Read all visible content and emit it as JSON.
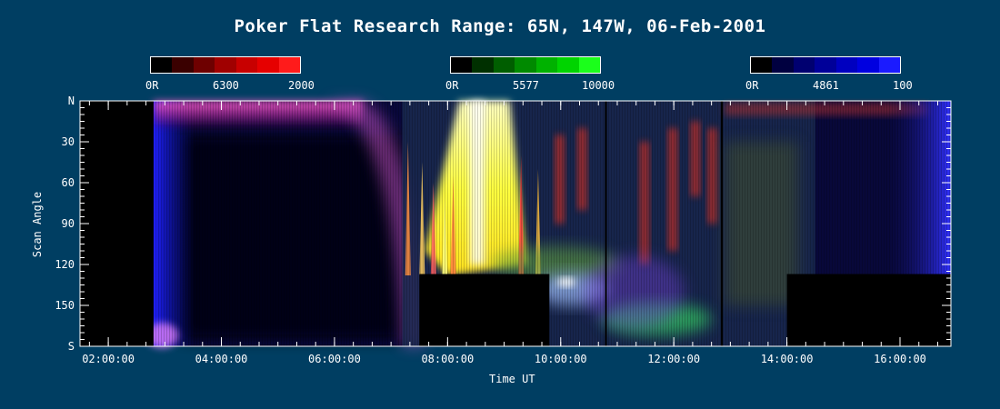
{
  "chart_data": {
    "type": "heatmap",
    "title": "Poker Flat Research Range: 65N, 147W, 06-Feb-2001",
    "xlabel": "Time UT",
    "ylabel": "Scan Angle",
    "x_ticks": [
      "02:00:00",
      "04:00:00",
      "06:00:00",
      "08:00:00",
      "10:00:00",
      "12:00:00",
      "14:00:00",
      "16:00:00"
    ],
    "y_ticks": [
      "N",
      "30",
      "60",
      "90",
      "120",
      "150",
      "S"
    ],
    "xlim_hours": [
      1.5,
      16.9
    ],
    "ylim_deg": [
      0,
      180
    ],
    "colorbars": [
      {
        "wavelength": "6300",
        "min_label": "0R",
        "max_label": "2000",
        "color": "#ff1b1b",
        "segments": [
          "#000000",
          "#3a0000",
          "#6e0000",
          "#a00000",
          "#c80000",
          "#e60000",
          "#ff1b1b"
        ]
      },
      {
        "wavelength": "5577",
        "min_label": "0R",
        "max_label": "10000",
        "color": "#1bff1b",
        "segments": [
          "#000000",
          "#003000",
          "#005e00",
          "#008a00",
          "#00b200",
          "#00d400",
          "#1bff1b"
        ]
      },
      {
        "wavelength": "4861",
        "min_label": "0R",
        "max_label": "100",
        "color": "#2a2aff",
        "segments": [
          "#000000",
          "#000040",
          "#000070",
          "#000099",
          "#0000c0",
          "#0000e0",
          "#1b1bff"
        ]
      }
    ],
    "no_data_intervals": [
      {
        "t_start": 1.5,
        "t_end": 2.8,
        "angle_start": 0,
        "angle_end": 180
      },
      {
        "t_start": 7.5,
        "t_end": 9.8,
        "angle_start": 127,
        "angle_end": 180
      },
      {
        "t_start": 14.0,
        "t_end": 16.9,
        "angle_start": 127,
        "angle_end": 180
      }
    ],
    "vertical_lines_hours": [
      10.8,
      12.85
    ]
  },
  "colors": {
    "background": "#003e62",
    "axis": "#ffffff"
  }
}
